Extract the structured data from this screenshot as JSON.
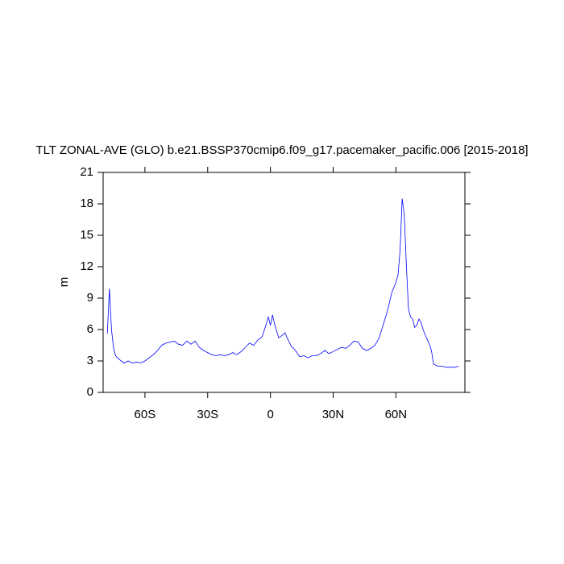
{
  "chart_data": {
    "type": "line",
    "title": "TLT ZONAL-AVE (GLO) b.e21.BSSP370cmip6.f09_g17.pacemaker_pacific.006 [2015-2018]",
    "y_label": "m",
    "x": [
      -78,
      -77,
      -76,
      -75,
      -74,
      -72,
      -70,
      -68,
      -66,
      -64,
      -62,
      -60,
      -58,
      -56,
      -54,
      -52,
      -50,
      -48,
      -46,
      -44,
      -42,
      -40,
      -38,
      -36,
      -34,
      -32,
      -30,
      -28,
      -26,
      -24,
      -22,
      -20,
      -18,
      -16,
      -14,
      -12,
      -10,
      -8,
      -6,
      -4,
      -2,
      -1,
      0,
      1,
      2,
      4,
      6,
      7,
      8,
      10,
      12,
      14,
      16,
      18,
      20,
      22,
      24,
      26,
      28,
      30,
      32,
      34,
      36,
      38,
      40,
      42,
      44,
      46,
      48,
      50,
      52,
      54,
      56,
      58,
      60,
      61,
      62,
      63,
      64,
      65,
      66,
      67,
      68,
      69,
      70,
      71,
      72,
      73,
      74,
      76,
      77,
      78,
      80,
      82,
      84,
      86,
      88,
      90
    ],
    "series": [
      {
        "name": "TLT",
        "color": "#0000ff",
        "values": [
          5.6,
          9.9,
          6.0,
          4.2,
          3.5,
          3.1,
          2.8,
          3.0,
          2.8,
          2.9,
          2.8,
          3.0,
          3.3,
          3.6,
          4.0,
          4.5,
          4.7,
          4.8,
          4.9,
          4.6,
          4.5,
          4.9,
          4.6,
          4.9,
          4.3,
          4.0,
          3.8,
          3.6,
          3.5,
          3.6,
          3.5,
          3.6,
          3.8,
          3.6,
          3.9,
          4.3,
          4.7,
          4.5,
          5.0,
          5.3,
          6.5,
          7.2,
          6.4,
          7.4,
          6.5,
          5.2,
          5.5,
          5.7,
          5.2,
          4.4,
          4.0,
          3.4,
          3.5,
          3.3,
          3.5,
          3.5,
          3.7,
          4.0,
          3.7,
          3.9,
          4.1,
          4.3,
          4.2,
          4.5,
          4.9,
          4.8,
          4.2,
          4.0,
          4.2,
          4.5,
          5.2,
          6.5,
          7.8,
          9.5,
          10.5,
          11.2,
          13.5,
          18.5,
          17.0,
          12.2,
          8.0,
          7.2,
          7.0,
          6.2,
          6.4,
          7.0,
          6.7,
          6.0,
          5.5,
          4.6,
          4.0,
          2.7,
          2.5,
          2.5,
          2.4,
          2.4,
          2.4,
          2.5
        ]
      }
    ],
    "xlim": [
      -80,
      93
    ],
    "xticks": [
      {
        "value": -60,
        "label": "60S"
      },
      {
        "value": -30,
        "label": "30S"
      },
      0,
      {
        "value": 30,
        "label": "30N"
      },
      {
        "value": 60,
        "label": "60N"
      }
    ],
    "ylim": [
      0,
      21
    ],
    "yticks": [
      0,
      3,
      6,
      9,
      12,
      15,
      18,
      21
    ]
  }
}
